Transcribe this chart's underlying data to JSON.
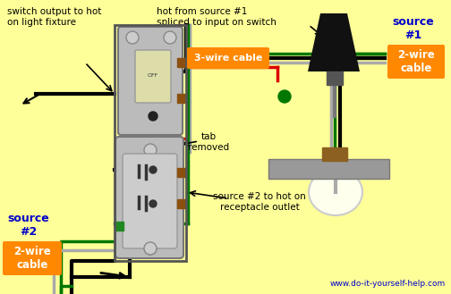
{
  "bg_color": "#FFFF99",
  "website": "www.do-it-yourself-help.com",
  "labels": {
    "top_left": "switch output to hot\non light fixture",
    "top_mid": "hot from source #1\nspliced to input on switch",
    "source1_title": "source\n#1",
    "source1_sub": "2-wire\ncable",
    "three_wire": "3-wire cable",
    "tab_removed": "tab\nremoved",
    "source2_title": "source\n#2",
    "source2_sub": "2-wire\ncable",
    "source2_arrow": "source #2 to hot on\nreceptacle outlet"
  },
  "colors": {
    "black_wire": "#000000",
    "red_wire": "#DD0000",
    "green_wire": "#007700",
    "white_wire": "#AAAAAA",
    "orange_label": "#FF8800",
    "blue_text": "#0000CC",
    "outlet_body": "#AAAAAA",
    "box_border": "#555555",
    "lamp_shade": "#111111",
    "lamp_body": "#AAAAAA",
    "bulb": "#FFFFEE",
    "fixture_base": "#8B6020",
    "fixture_bar": "#999999"
  }
}
